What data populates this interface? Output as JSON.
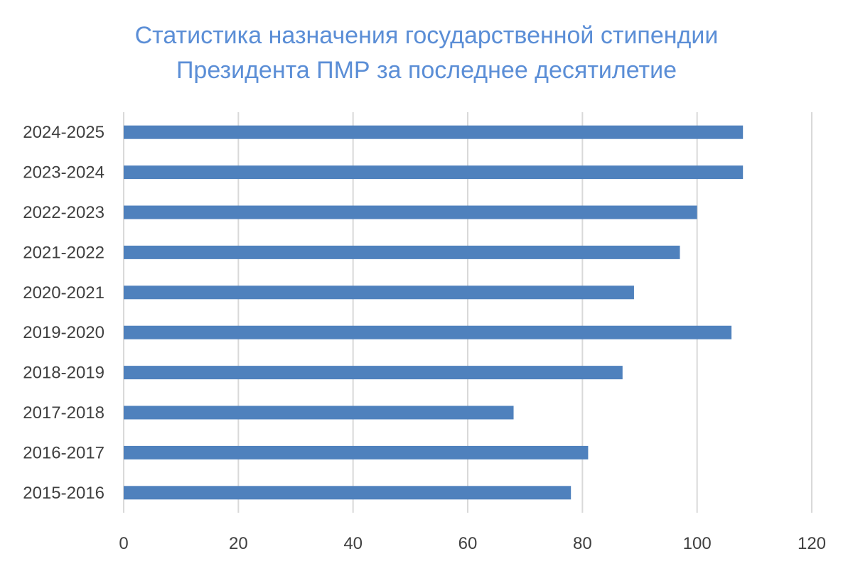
{
  "chart_data": {
    "type": "bar",
    "orientation": "horizontal",
    "title": "Статистика назначения государственной стипендии Президента ПМР за последнее десятилетие",
    "title_lines": [
      "Статистика назначения государственной стипендии",
      "Президента ПМР за последнее десятилетие"
    ],
    "categories": [
      "2015-2016",
      "2016-2017",
      "2017-2018",
      "2018-2019",
      "2019-2020",
      "2020-2021",
      "2021-2022",
      "2022-2023",
      "2023-2024",
      "2024-2025"
    ],
    "values": [
      78,
      81,
      68,
      87,
      106,
      89,
      97,
      100,
      108,
      108
    ],
    "xlim": [
      0,
      120
    ],
    "xticks": [
      "0",
      "20",
      "40",
      "60",
      "80",
      "100",
      "120"
    ],
    "xlabel": "",
    "ylabel": "",
    "grid": "vertical",
    "legend": "none",
    "bar_color": "#4F81BD",
    "title_color": "#5B8ED6",
    "grid_color": "#D9D9D9",
    "label_color": "#404040"
  }
}
